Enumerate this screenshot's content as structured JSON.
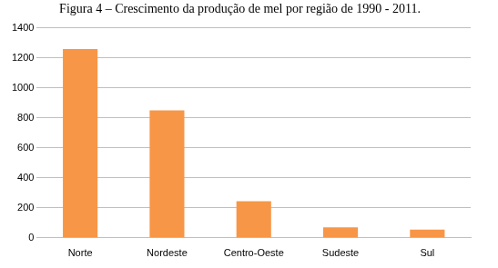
{
  "chart_data": {
    "type": "bar",
    "title": "Figura 4 – Crescimento da produção de mel por região de 1990 - 2011.",
    "categories": [
      "Norte",
      "Nordeste",
      "Centro-Oeste",
      "Sudeste",
      "Sul"
    ],
    "values": [
      1260,
      850,
      245,
      70,
      55
    ],
    "color": "#f79646",
    "ylim": [
      0,
      1400
    ],
    "yticks": [
      0,
      200,
      400,
      600,
      800,
      1000,
      1200,
      1400
    ],
    "grid": true
  }
}
